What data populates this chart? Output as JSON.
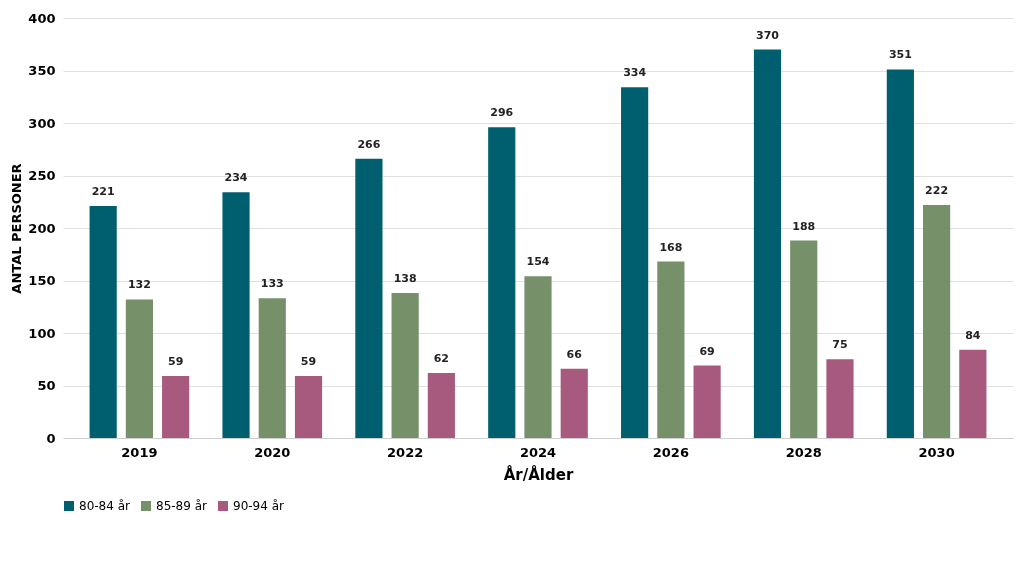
{
  "chart_data": {
    "type": "bar",
    "xlabel": "År/Ålder",
    "ylabel": "ANTAL PERSONER",
    "categories": [
      "2019",
      "2020",
      "2022",
      "2024",
      "2026",
      "2028",
      "2030"
    ],
    "series": [
      {
        "name": "80-84 år",
        "color": "#005f6e",
        "values": [
          221,
          234,
          266,
          296,
          334,
          370,
          351
        ]
      },
      {
        "name": "85-89 år",
        "color": "#76906a",
        "values": [
          132,
          133,
          138,
          154,
          168,
          188,
          222
        ]
      },
      {
        "name": "90-94 år",
        "color": "#a85a7e",
        "values": [
          59,
          59,
          62,
          66,
          69,
          75,
          84
        ]
      }
    ],
    "ylim": [
      0,
      400
    ],
    "yticks": [
      0,
      50,
      100,
      150,
      200,
      250,
      300,
      350,
      400
    ],
    "grid": "y",
    "legend": "bottom",
    "data_labels": true
  }
}
